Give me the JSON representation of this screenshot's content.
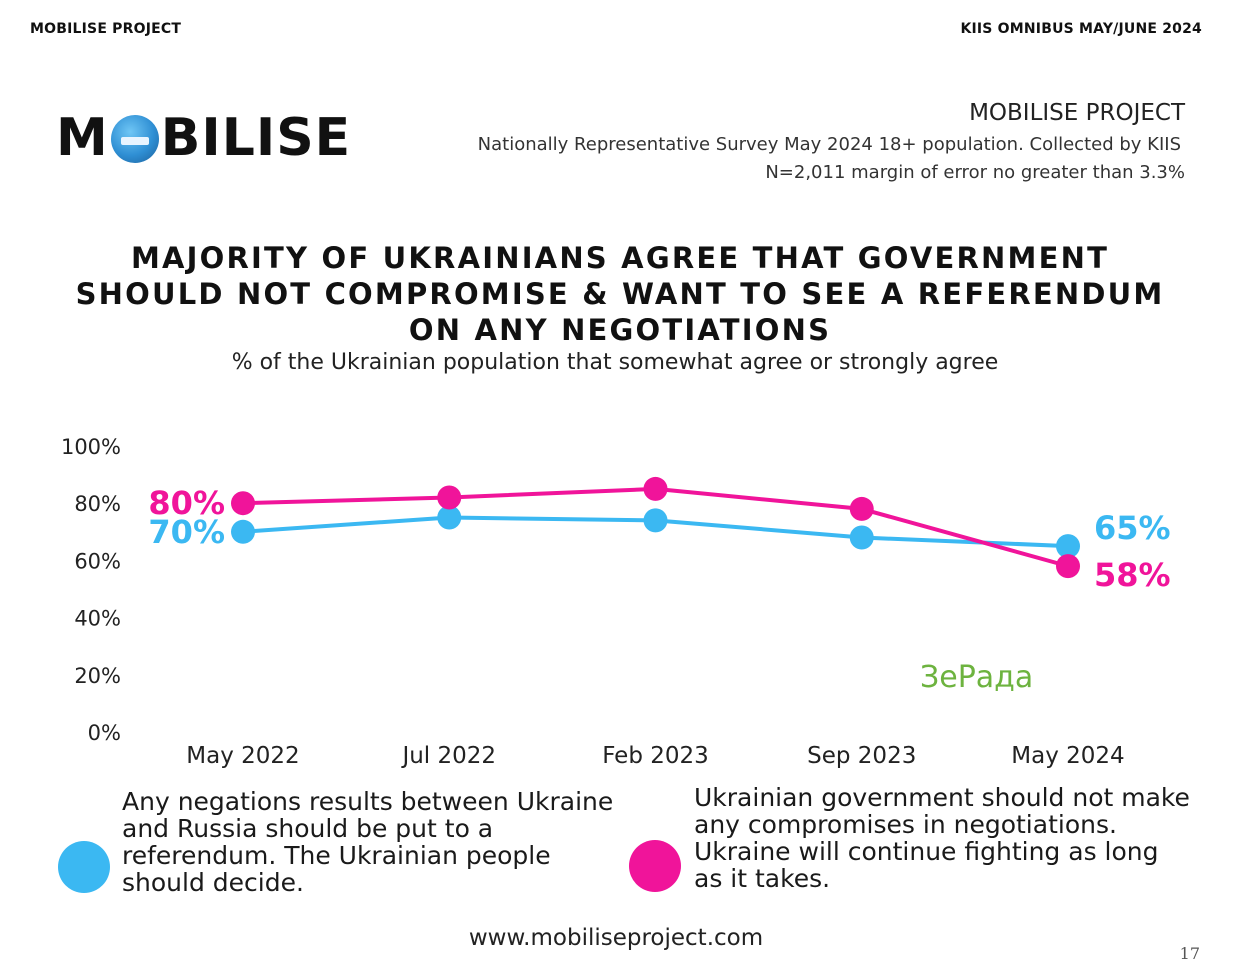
{
  "header": {
    "left": "MOBILISE PROJECT",
    "right": "KIIS OMNIBUS MAY/JUNE 2024"
  },
  "logo": {
    "text_before": "M",
    "text_after": "BILISE"
  },
  "project": {
    "title": "MOBILISE PROJECT",
    "survey_line1": "Nationally Representative Survey May 2024 18+ population. Collected by KIIS",
    "survey_line2": "N=2,011 margin of error no greater than 3.3%"
  },
  "chart_data": {
    "type": "line",
    "title": "MAJORITY OF UKRAINIANS AGREE THAT GOVERNMENT SHOULD NOT COMPROMISE & WANT TO SEE A REFERENDUM ON ANY NEGOTIATIONS",
    "subtitle": "% of the Ukrainian population that somewhat agree or strongly agree",
    "categories": [
      "May 2022",
      "Jul 2022",
      "Feb 2023",
      "Sep 2023",
      "May 2024"
    ],
    "y_ticks": [
      "0%",
      "20%",
      "40%",
      "60%",
      "80%",
      "100%"
    ],
    "ylim": [
      0,
      100
    ],
    "grid": false,
    "series": [
      {
        "key": "referendum",
        "color": "#3bb8f2",
        "values": [
          70,
          75,
          74,
          68,
          65
        ],
        "start_label": "70%",
        "end_label": "65%"
      },
      {
        "key": "no_compromise",
        "color": "#f0149a",
        "values": [
          80,
          82,
          85,
          78,
          58
        ],
        "start_label": "80%",
        "end_label": "58%"
      }
    ]
  },
  "legend": {
    "blue_text": "Any negations results between Ukraine and Russia should be put to a referendum. The Ukrainian people should decide.",
    "pink_text": "Ukrainian government should not make any compromises in negotiations. Ukraine will continue fighting as long as it takes."
  },
  "watermark": "ЗеРада",
  "footer": {
    "url": "www.mobiliseproject.com",
    "page_number": "17"
  }
}
